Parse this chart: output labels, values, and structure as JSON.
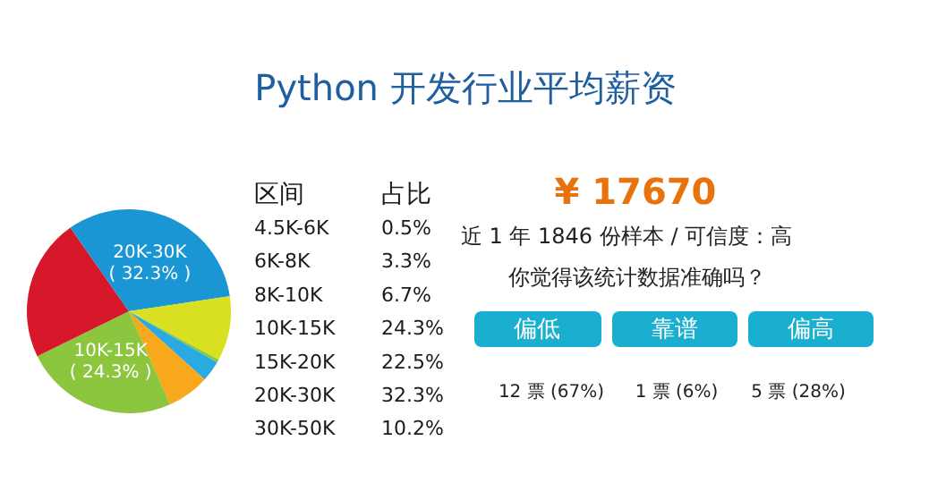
{
  "chart_data": [
    {
      "type": "pie",
      "title": "Python 开发行业平均薪资",
      "categories": [
        null,
        null,
        null,
        "10K-15K",
        null,
        "20K-30K",
        null
      ],
      "values": [
        0.5,
        3.3,
        6.7,
        24.3,
        22.5,
        32.3,
        10.2
      ],
      "colors": [
        "#8dc63f",
        "#29abe2",
        "#f7a81b",
        "#8cc63e",
        "#d7182a",
        "#1a96d4",
        "#d9e021"
      ],
      "value_labels": [
        null,
        null,
        null,
        "( 24.3% )",
        null,
        "( 32.3% )",
        null
      ]
    },
    {
      "type": "other",
      "annotations": [
        "区间",
        "占比",
        "4.5K-6K",
        "0.5%",
        "6K-8K",
        "3.3%",
        "8K-10K",
        "6.7%",
        "10K-15K",
        "24.3%",
        "15K-20K",
        "22.5%",
        "20K-30K",
        "32.3%",
        "30K-50K",
        "10.2%"
      ]
    },
    {
      "type": "other",
      "annotations": [
        "¥ 17670",
        "近 1 年 1846 份样本 / 可信度：高",
        "你觉得该统计数据准确吗？",
        "偏低",
        "靠谱",
        "偏高",
        "12 票 (67%)",
        "1 票 (6%)",
        "5 票 (28%)"
      ]
    }
  ]
}
